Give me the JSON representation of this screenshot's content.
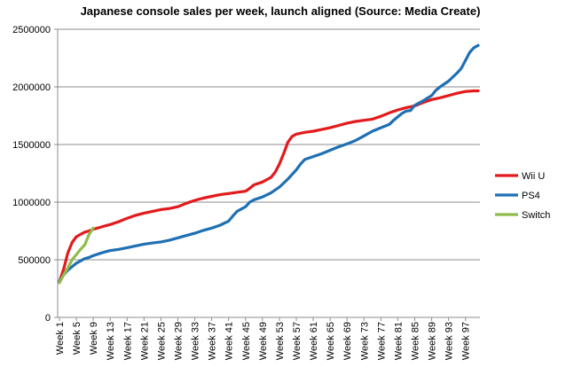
{
  "chart_data": {
    "type": "line",
    "title": "Japanese console sales per week, launch aligned (Source: Media Create)",
    "xlabel": "",
    "ylabel": "",
    "ylim": [
      0,
      2500000
    ],
    "yticks": [
      "0",
      "500000",
      "1000000",
      "1500000",
      "2000000",
      "2500000"
    ],
    "ytick_values": [
      0,
      500000,
      1000000,
      1500000,
      2000000,
      2500000
    ],
    "x_range": [
      1,
      100
    ],
    "x_tick_labels": [
      "Week 1",
      "Week 5",
      "Week 9",
      "Week 13",
      "Week 17",
      "Week 21",
      "Week 25",
      "Week 29",
      "Week 33",
      "Week 37",
      "Week 41",
      "Week 45",
      "Week 49",
      "Week 53",
      "Week 57",
      "Week 61",
      "Week 65",
      "Week 69",
      "Week 73",
      "Week 77",
      "Week 81",
      "Week 85",
      "Week 89",
      "Week 93",
      "Week 97"
    ],
    "grid": "horizontal",
    "legend_position": "right",
    "series": [
      {
        "name": "Wii U",
        "color": "#e31a1c",
        "points": [
          [
            1,
            310000
          ],
          [
            2,
            420000
          ],
          [
            3,
            560000
          ],
          [
            4,
            650000
          ],
          [
            5,
            700000
          ],
          [
            6,
            720000
          ],
          [
            7,
            740000
          ],
          [
            8,
            750000
          ],
          [
            9,
            765000
          ],
          [
            10,
            775000
          ],
          [
            11,
            785000
          ],
          [
            12,
            795000
          ],
          [
            13,
            805000
          ],
          [
            15,
            830000
          ],
          [
            17,
            860000
          ],
          [
            19,
            885000
          ],
          [
            21,
            905000
          ],
          [
            23,
            920000
          ],
          [
            25,
            935000
          ],
          [
            27,
            945000
          ],
          [
            29,
            960000
          ],
          [
            31,
            990000
          ],
          [
            33,
            1015000
          ],
          [
            35,
            1035000
          ],
          [
            37,
            1050000
          ],
          [
            39,
            1065000
          ],
          [
            41,
            1075000
          ],
          [
            43,
            1085000
          ],
          [
            45,
            1095000
          ],
          [
            46,
            1120000
          ],
          [
            47,
            1150000
          ],
          [
            49,
            1175000
          ],
          [
            51,
            1215000
          ],
          [
            52,
            1260000
          ],
          [
            53,
            1330000
          ],
          [
            54,
            1420000
          ],
          [
            55,
            1520000
          ],
          [
            56,
            1570000
          ],
          [
            57,
            1590000
          ],
          [
            59,
            1605000
          ],
          [
            61,
            1615000
          ],
          [
            63,
            1630000
          ],
          [
            65,
            1645000
          ],
          [
            67,
            1665000
          ],
          [
            69,
            1685000
          ],
          [
            71,
            1700000
          ],
          [
            73,
            1710000
          ],
          [
            75,
            1720000
          ],
          [
            77,
            1745000
          ],
          [
            79,
            1775000
          ],
          [
            81,
            1800000
          ],
          [
            83,
            1820000
          ],
          [
            85,
            1835000
          ],
          [
            87,
            1865000
          ],
          [
            89,
            1890000
          ],
          [
            91,
            1905000
          ],
          [
            93,
            1925000
          ],
          [
            95,
            1945000
          ],
          [
            97,
            1960000
          ],
          [
            99,
            1965000
          ],
          [
            100,
            1965000
          ]
        ]
      },
      {
        "name": "PS4",
        "color": "#1f6fb4",
        "points": [
          [
            1,
            310000
          ],
          [
            2,
            370000
          ],
          [
            3,
            410000
          ],
          [
            4,
            440000
          ],
          [
            5,
            470000
          ],
          [
            6,
            490000
          ],
          [
            7,
            510000
          ],
          [
            8,
            520000
          ],
          [
            9,
            535000
          ],
          [
            11,
            560000
          ],
          [
            13,
            580000
          ],
          [
            15,
            590000
          ],
          [
            17,
            605000
          ],
          [
            19,
            620000
          ],
          [
            21,
            635000
          ],
          [
            23,
            645000
          ],
          [
            25,
            655000
          ],
          [
            27,
            670000
          ],
          [
            29,
            690000
          ],
          [
            31,
            710000
          ],
          [
            33,
            730000
          ],
          [
            35,
            755000
          ],
          [
            37,
            775000
          ],
          [
            39,
            800000
          ],
          [
            41,
            835000
          ],
          [
            42,
            880000
          ],
          [
            43,
            920000
          ],
          [
            45,
            960000
          ],
          [
            46,
            1000000
          ],
          [
            47,
            1020000
          ],
          [
            49,
            1045000
          ],
          [
            51,
            1080000
          ],
          [
            53,
            1130000
          ],
          [
            55,
            1200000
          ],
          [
            57,
            1280000
          ],
          [
            58,
            1330000
          ],
          [
            59,
            1370000
          ],
          [
            61,
            1395000
          ],
          [
            63,
            1420000
          ],
          [
            65,
            1450000
          ],
          [
            67,
            1480000
          ],
          [
            69,
            1505000
          ],
          [
            71,
            1535000
          ],
          [
            73,
            1575000
          ],
          [
            75,
            1615000
          ],
          [
            77,
            1645000
          ],
          [
            79,
            1675000
          ],
          [
            80,
            1710000
          ],
          [
            81,
            1740000
          ],
          [
            82,
            1770000
          ],
          [
            83,
            1790000
          ],
          [
            84,
            1795000
          ],
          [
            85,
            1840000
          ],
          [
            87,
            1880000
          ],
          [
            89,
            1925000
          ],
          [
            90,
            1970000
          ],
          [
            91,
            2000000
          ],
          [
            93,
            2050000
          ],
          [
            95,
            2120000
          ],
          [
            96,
            2160000
          ],
          [
            97,
            2230000
          ],
          [
            98,
            2300000
          ],
          [
            99,
            2340000
          ],
          [
            100,
            2360000
          ]
        ]
      },
      {
        "name": "Switch",
        "color": "#8fbc4a",
        "points": [
          [
            1,
            300000
          ],
          [
            2,
            370000
          ],
          [
            3,
            430000
          ],
          [
            4,
            500000
          ],
          [
            5,
            545000
          ],
          [
            6,
            590000
          ],
          [
            7,
            630000
          ],
          [
            8,
            720000
          ],
          [
            9,
            775000
          ]
        ]
      }
    ]
  }
}
